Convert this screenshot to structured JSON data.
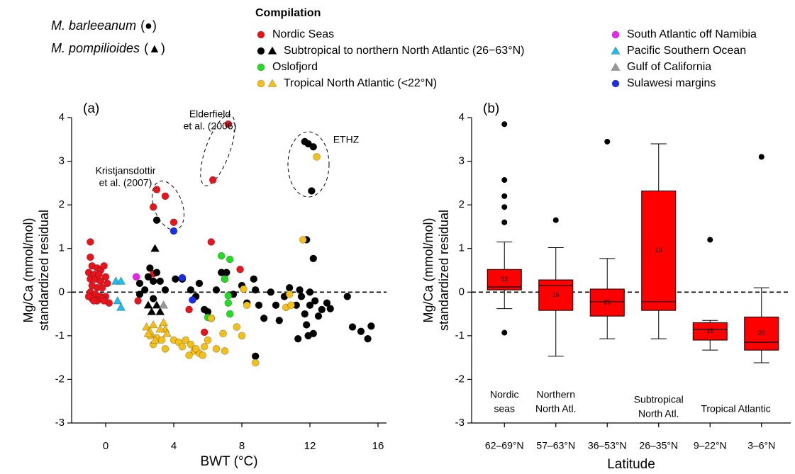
{
  "chart_data": [
    {
      "type": "scatter",
      "panel_label": "(a)",
      "xlabel": "BWT (°C)",
      "ylabel": [
        "Mg/Ca (mmol/mol)",
        "standardized residual"
      ],
      "xlim": [
        -2,
        16.5
      ],
      "ylim": [
        -3,
        4
      ],
      "xticks": [
        0,
        4,
        8,
        12,
        16
      ],
      "yticks": [
        -3,
        -2,
        -1,
        0,
        1,
        2,
        3,
        4
      ],
      "hline": 0,
      "legend_title": "Compilation",
      "species": [
        {
          "name": "M. barleeanum",
          "symbol": "(●)"
        },
        {
          "name": "M. pompilioides",
          "symbol": "(▲)"
        }
      ],
      "annotations": [
        {
          "lines": [
            "Elderfield",
            "et al. (2006)"
          ]
        },
        {
          "lines": [
            "Kristjansdottir",
            "et al. (2007)"
          ]
        },
        {
          "lines": [
            "ETHZ"
          ]
        }
      ],
      "series": [
        {
          "name": "Nordic Seas",
          "color": "#e8141c",
          "circles": {
            "x": [
              -0.9,
              -0.9,
              -0.8,
              -1.0,
              -0.7,
              -0.5,
              -0.3,
              -0.1,
              0.0,
              -0.9,
              -0.6,
              -0.3,
              -0.8,
              -0.5,
              -0.2,
              0.1,
              -0.9,
              -0.6,
              -0.3,
              0.0,
              -0.8,
              -0.5,
              -0.2,
              0.2,
              -1.0,
              -0.4,
              -0.7,
              -0.1,
              1.9,
              2.8,
              3.0,
              3.5,
              4.0,
              6.3,
              7.2,
              6.2,
              2.8,
              7.9,
              5.8,
              4.9,
              7.0
            ],
            "y": [
              1.15,
              0.8,
              0.6,
              0.45,
              0.4,
              0.55,
              0.5,
              0.6,
              0.35,
              0.3,
              0.3,
              0.25,
              0.15,
              0.1,
              0.1,
              0.2,
              0.0,
              -0.05,
              -0.1,
              -0.1,
              -0.15,
              -0.2,
              -0.15,
              -0.25,
              -0.1,
              0.4,
              -0.2,
              -0.2,
              -0.2,
              1.95,
              2.35,
              2.2,
              1.6,
              2.57,
              3.85,
              1.15,
              0.42,
              0.52,
              -0.92,
              -0.4,
              0.3
            ]
          },
          "triangles": {
            "x": [],
            "y": []
          }
        },
        {
          "name": "Subtropical to northern North Atlantic (26−63°N)",
          "color": "#000000",
          "circles": {
            "x": [
              2.0,
              2.3,
              2.5,
              2.6,
              2.8,
              3.0,
              3.2,
              3.5,
              3.0,
              2.0,
              2.8,
              4.5,
              5.0,
              5.5,
              5.3,
              5.8,
              6.2,
              6.8,
              7.1,
              6.5,
              7.5,
              8.0,
              8.3,
              8.7,
              8.8,
              9.0,
              9.3,
              10.0,
              10.2,
              10.5,
              10.8,
              11.2,
              11.5,
              11.7,
              11.8,
              11.9,
              12.0,
              12.2,
              12.0,
              12.3,
              12.5,
              12.7,
              13.0,
              13.2,
              11.3,
              12.2,
              11.8,
              14.2,
              14.5,
              15.0,
              15.4,
              15.6,
              11.7,
              11.9,
              12.2,
              12.1,
              8.8,
              6.0,
              4.1,
              11.4,
              9.7
            ],
            "y": [
              0.2,
              0.05,
              0.35,
              0.55,
              0.25,
              0.45,
              0.25,
              0.05,
              1.65,
              -0.05,
              -0.15,
              0.3,
              0.05,
              0.2,
              -0.1,
              -0.4,
              -0.6,
              0.45,
              0.45,
              0.05,
              -0.05,
              0.15,
              -0.25,
              0.3,
              0.05,
              -0.3,
              -0.6,
              -0.3,
              -0.65,
              -0.1,
              0.1,
              -0.3,
              -0.1,
              -0.5,
              -0.75,
              -1.0,
              -0.3,
              -0.95,
              0.0,
              -0.2,
              -0.55,
              -0.4,
              -0.25,
              -0.38,
              -1.07,
              0.77,
              1.2,
              -0.1,
              -0.8,
              -0.9,
              -1.07,
              -0.78,
              3.45,
              3.4,
              3.33,
              2.32,
              -1.47,
              -0.45,
              0.3,
              0.05,
              0.0
            ]
          },
          "triangles": {
            "x": [
              2.9,
              2.5,
              2.7,
              3.0,
              3.2
            ],
            "y": [
              1.0,
              -0.3,
              -0.45,
              -0.3,
              -0.45
            ]
          }
        },
        {
          "name": "Oslofjord",
          "color": "#22dd22",
          "circles": {
            "x": [
              6.8,
              7.3,
              7.0,
              7.2,
              7.2,
              7.3,
              6.0
            ],
            "y": [
              0.83,
              0.75,
              0.3,
              -0.08,
              -0.25,
              -0.5,
              -0.58
            ]
          },
          "triangles": {
            "x": [],
            "y": []
          }
        },
        {
          "name": "Tropical North Atlantic (<22°N)",
          "color": "#f5bf1a",
          "circles": {
            "x": [
              2.6,
              2.8,
              3.0,
              3.3,
              3.5,
              4.0,
              4.3,
              4.5,
              4.7,
              5.0,
              5.2,
              5.5,
              5.3,
              5.8,
              6.0,
              6.5,
              6.2,
              7.0,
              6.9,
              7.7,
              8.0,
              8.3,
              8.1,
              8.8,
              10.6,
              10.9,
              11.6,
              12.4,
              10.8,
              5.7,
              4.9
            ],
            "y": [
              -1.0,
              -1.2,
              -1.05,
              -1.1,
              -1.3,
              -1.1,
              -1.15,
              -1.25,
              -1.1,
              -1.2,
              -1.35,
              -1.4,
              -1.3,
              -1.25,
              -1.1,
              -1.3,
              -0.6,
              -1.35,
              -0.95,
              -0.8,
              -1.0,
              -0.3,
              0.07,
              -1.62,
              -0.35,
              -0.3,
              1.2,
              3.1,
              -0.05,
              -1.45,
              -1.45
            ]
          },
          "triangles": {
            "x": [
              2.4,
              2.6,
              2.8,
              2.5,
              3.4,
              3.5,
              3.6,
              2.9,
              3.2
            ],
            "y": [
              -0.8,
              -0.9,
              -0.75,
              -0.95,
              -0.7,
              -0.85,
              -0.95,
              -1.1,
              -0.85
            ]
          }
        },
        {
          "name": "South Atlantic off Namibia",
          "color": "#ee22ee",
          "circles": {
            "x": [
              1.8
            ],
            "y": [
              0.35
            ]
          },
          "triangles": {
            "x": [],
            "y": []
          }
        },
        {
          "name": "Pacific Southern Ocean",
          "color": "#22bbee",
          "circles": {
            "x": [],
            "y": []
          },
          "triangles": {
            "x": [
              0.6,
              0.9,
              0.7,
              0.9
            ],
            "y": [
              0.25,
              0.25,
              -0.2,
              -0.35
            ]
          }
        },
        {
          "name": "Gulf of California",
          "color": "#999999",
          "circles": {
            "x": [],
            "y": []
          },
          "triangles": {
            "x": [
              3.4
            ],
            "y": [
              -0.3
            ]
          }
        },
        {
          "name": "Sulawesi margins",
          "color": "#1a2ee8",
          "circles": {
            "x": [
              4.0,
              4.5,
              5.1
            ],
            "y": [
              1.4,
              0.33,
              -0.18
            ]
          },
          "triangles": {
            "x": [],
            "y": []
          }
        }
      ]
    },
    {
      "type": "box",
      "panel_label": "(b)",
      "xlabel": "Latitude",
      "ylabel": [
        "Mg/Ca (mmol/mol)",
        "standardized residual"
      ],
      "ylim": [
        -3,
        4
      ],
      "yticks": [
        -3,
        -2,
        -1,
        0,
        1,
        2,
        3,
        4
      ],
      "hline": 0,
      "color": "#ff0000",
      "categories": [
        "62–69°N",
        "57–63°N",
        "36–53°N",
        "26–35°N",
        "9–22°N",
        "3–6°N"
      ],
      "boxes": [
        {
          "whisker_low": -0.38,
          "q1": 0.05,
          "median": 0.12,
          "q3": 0.52,
          "whisker_high": 1.15,
          "n": 52,
          "outliers": [
            3.85,
            2.57,
            2.2,
            1.95,
            1.6,
            -0.93
          ]
        },
        {
          "whisker_low": -1.47,
          "q1": -0.42,
          "median": 0.15,
          "q3": 0.28,
          "whisker_high": 1.02,
          "n": 16,
          "outliers": [
            1.65
          ]
        },
        {
          "whisker_low": -1.07,
          "q1": -0.55,
          "median": -0.22,
          "q3": 0.07,
          "whisker_high": 0.77,
          "n": 25,
          "outliers": [
            3.45
          ]
        },
        {
          "whisker_low": -1.07,
          "q1": -0.42,
          "median": -0.22,
          "q3": 2.32,
          "whisker_high": 3.4,
          "n": 13,
          "outliers": []
        },
        {
          "whisker_low": -1.33,
          "q1": -1.1,
          "median": -0.85,
          "q3": -0.7,
          "whisker_high": -0.65,
          "n": 15,
          "outliers": [
            1.2
          ]
        },
        {
          "whisker_low": -1.62,
          "q1": -1.33,
          "median": -1.15,
          "q3": -0.57,
          "whisker_high": 0.1,
          "n": 20,
          "outliers": [
            3.1
          ]
        }
      ],
      "region_labels": [
        {
          "lines": [
            "Nordic",
            "seas"
          ]
        },
        {
          "lines": [
            "Northern",
            "North Atl."
          ]
        },
        {
          "lines": [
            "Subtropical",
            "North Atl."
          ]
        },
        {
          "lines": [
            "Tropical Atlantic"
          ]
        }
      ]
    }
  ]
}
